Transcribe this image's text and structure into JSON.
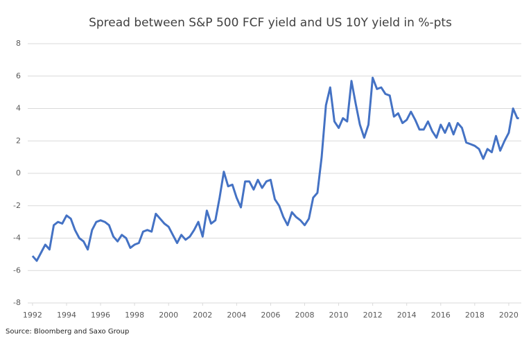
{
  "chart_data": {
    "type": "line",
    "title": "Spread between S&P 500 FCF yield and US 10Y yield in %-pts",
    "source": "Source: Bloomberg and Saxo Group",
    "x": [
      1992.0,
      1992.25,
      1992.5,
      1992.75,
      1993.0,
      1993.25,
      1993.5,
      1993.75,
      1994.0,
      1994.25,
      1994.5,
      1994.75,
      1995.0,
      1995.25,
      1995.5,
      1995.75,
      1996.0,
      1996.25,
      1996.5,
      1996.75,
      1997.0,
      1997.25,
      1997.5,
      1997.75,
      1998.0,
      1998.25,
      1998.5,
      1998.75,
      1999.0,
      1999.25,
      1999.5,
      1999.75,
      2000.0,
      2000.25,
      2000.5,
      2000.75,
      2001.0,
      2001.25,
      2001.5,
      2001.75,
      2002.0,
      2002.25,
      2002.5,
      2002.75,
      2003.0,
      2003.25,
      2003.5,
      2003.75,
      2004.0,
      2004.25,
      2004.5,
      2004.75,
      2005.0,
      2005.25,
      2005.5,
      2005.75,
      2006.0,
      2006.25,
      2006.5,
      2006.75,
      2007.0,
      2007.25,
      2007.5,
      2007.75,
      2008.0,
      2008.25,
      2008.5,
      2008.75,
      2009.0,
      2009.25,
      2009.5,
      2009.75,
      2010.0,
      2010.25,
      2010.5,
      2010.75,
      2011.0,
      2011.25,
      2011.5,
      2011.75,
      2012.0,
      2012.25,
      2012.5,
      2012.75,
      2013.0,
      2013.25,
      2013.5,
      2013.75,
      2014.0,
      2014.25,
      2014.5,
      2014.75,
      2015.0,
      2015.25,
      2015.5,
      2015.75,
      2016.0,
      2016.25,
      2016.5,
      2016.75,
      2017.0,
      2017.25,
      2017.5,
      2017.75,
      2018.0,
      2018.25,
      2018.5,
      2018.75,
      2019.0,
      2019.25,
      2019.5,
      2019.75,
      2020.0,
      2020.25,
      2020.5,
      2020.6
    ],
    "series": [
      {
        "name": "Spread",
        "color": "#4472c4",
        "values": [
          -5.1,
          -5.4,
          -4.9,
          -4.4,
          -4.7,
          -3.2,
          -3.0,
          -3.1,
          -2.6,
          -2.8,
          -3.5,
          -4.0,
          -4.2,
          -4.7,
          -3.5,
          -3.0,
          -2.9,
          -3.0,
          -3.2,
          -3.9,
          -4.2,
          -3.8,
          -4.0,
          -4.6,
          -4.4,
          -4.3,
          -3.6,
          -3.5,
          -3.6,
          -2.5,
          -2.8,
          -3.1,
          -3.3,
          -3.8,
          -4.3,
          -3.8,
          -4.1,
          -3.9,
          -3.5,
          -3.0,
          -3.9,
          -2.3,
          -3.1,
          -2.9,
          -1.5,
          0.1,
          -0.8,
          -0.7,
          -1.5,
          -2.1,
          -0.5,
          -0.5,
          -1.0,
          -0.4,
          -0.9,
          -0.5,
          -0.4,
          -1.6,
          -2.0,
          -2.7,
          -3.2,
          -2.4,
          -2.7,
          -2.9,
          -3.2,
          -2.8,
          -1.5,
          -1.2,
          1.0,
          4.2,
          5.3,
          3.2,
          2.8,
          3.4,
          3.2,
          5.7,
          4.3,
          3.0,
          2.2,
          3.0,
          5.9,
          5.2,
          5.3,
          4.9,
          4.8,
          3.5,
          3.7,
          3.1,
          3.3,
          3.8,
          3.3,
          2.7,
          2.7,
          3.2,
          2.6,
          2.2,
          3.0,
          2.5,
          3.1,
          2.4,
          3.1,
          2.8,
          1.9,
          1.8,
          1.7,
          1.5,
          0.9,
          1.5,
          1.3,
          2.3,
          1.4,
          2.0,
          2.5,
          4.0,
          3.4,
          3.4
        ]
      }
    ],
    "xlim": [
      1991.8,
      2020.9
    ],
    "xticks": [
      1992,
      1994,
      1996,
      1998,
      2000,
      2002,
      2004,
      2006,
      2008,
      2010,
      2012,
      2014,
      2016,
      2018,
      2020
    ],
    "ylim": [
      -8,
      8
    ],
    "yticks": [
      -8,
      -6,
      -4,
      -2,
      0,
      2,
      4,
      6,
      8
    ],
    "grid": true
  }
}
